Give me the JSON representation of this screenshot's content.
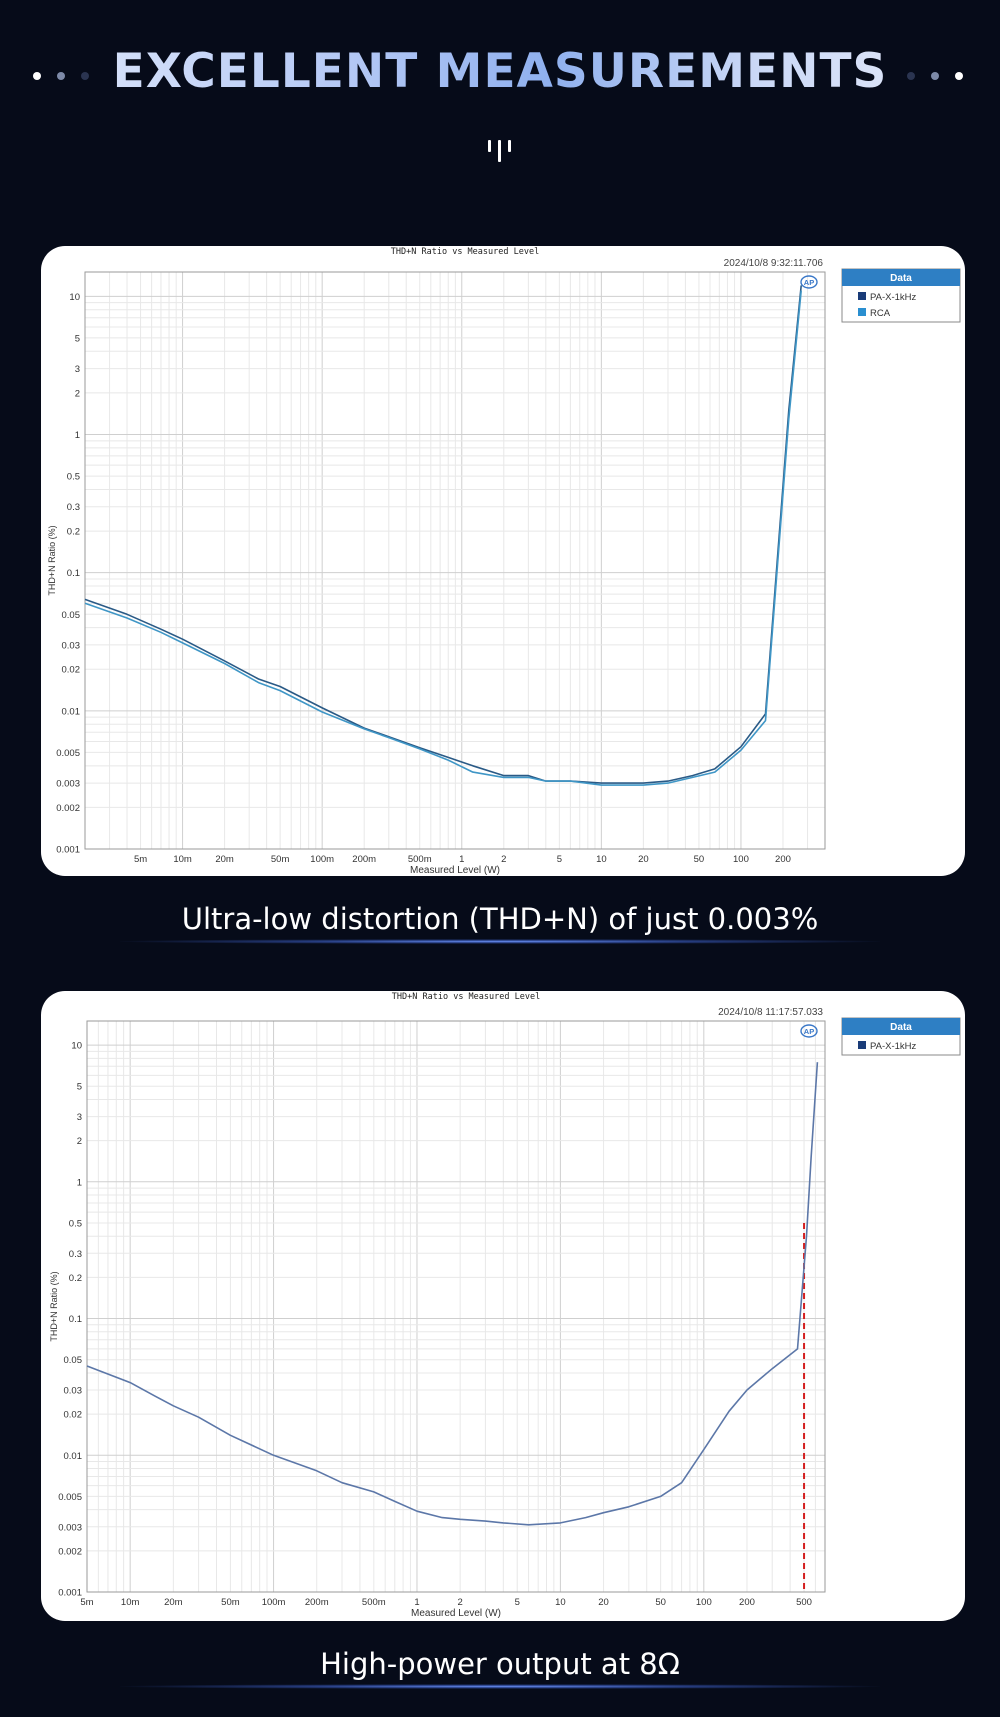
{
  "header": {
    "title": "EXCELLENT MEASUREMENTS",
    "colors": {
      "accent": "#8fb0ee",
      "background": "#060b19",
      "dot_light": "#ffffff",
      "dot_mid": "#7d8aa8",
      "dot_dark": "#2a3450"
    }
  },
  "captions": {
    "first": "Ultra-low distortion (THD+N) of just 0.003%",
    "second": "High-power output at 8Ω"
  },
  "chart_data": [
    {
      "type": "line",
      "title": "THD+N Ratio vs Measured Level",
      "timestamp": "2024/10/8 9:32:11.706",
      "xlabel": "Measured Level (W)",
      "ylabel": "THD+N Ratio (%)",
      "xscale": "log",
      "yscale": "log",
      "xlim": [
        0.002,
        400
      ],
      "ylim": [
        0.001,
        15
      ],
      "x_ticks": [
        {
          "v": 0.005,
          "label": "5m"
        },
        {
          "v": 0.01,
          "label": "10m"
        },
        {
          "v": 0.02,
          "label": "20m"
        },
        {
          "v": 0.05,
          "label": "50m"
        },
        {
          "v": 0.1,
          "label": "100m"
        },
        {
          "v": 0.2,
          "label": "200m"
        },
        {
          "v": 0.5,
          "label": "500m"
        },
        {
          "v": 1,
          "label": "1"
        },
        {
          "v": 2,
          "label": "2"
        },
        {
          "v": 5,
          "label": "5"
        },
        {
          "v": 10,
          "label": "10"
        },
        {
          "v": 20,
          "label": "20"
        },
        {
          "v": 50,
          "label": "50"
        },
        {
          "v": 100,
          "label": "100"
        },
        {
          "v": 200,
          "label": "200"
        }
      ],
      "y_ticks": [
        {
          "v": 10,
          "label": "10"
        },
        {
          "v": 5,
          "label": "5"
        },
        {
          "v": 3,
          "label": "3"
        },
        {
          "v": 2,
          "label": "2"
        },
        {
          "v": 1,
          "label": "1"
        },
        {
          "v": 0.5,
          "label": "0.5"
        },
        {
          "v": 0.3,
          "label": "0.3"
        },
        {
          "v": 0.2,
          "label": "0.2"
        },
        {
          "v": 0.1,
          "label": "0.1"
        },
        {
          "v": 0.05,
          "label": "0.05"
        },
        {
          "v": 0.03,
          "label": "0.03"
        },
        {
          "v": 0.02,
          "label": "0.02"
        },
        {
          "v": 0.01,
          "label": "0.01"
        },
        {
          "v": 0.005,
          "label": "0.005"
        },
        {
          "v": 0.003,
          "label": "0.003"
        },
        {
          "v": 0.002,
          "label": "0.002"
        },
        {
          "v": 0.001,
          "label": "0.001"
        }
      ],
      "legend": {
        "title": "Data",
        "placement": "right"
      },
      "ap_logo": "AP",
      "series": [
        {
          "name": "PA-X-1kHz",
          "color": "#2a5a86",
          "x": [
            0.002,
            0.004,
            0.007,
            0.01,
            0.02,
            0.035,
            0.05,
            0.1,
            0.2,
            0.3,
            0.5,
            0.8,
            1.2,
            2,
            3,
            4,
            6,
            10,
            15,
            20,
            30,
            45,
            65,
            100,
            150,
            220,
            270
          ],
          "y": [
            0.064,
            0.05,
            0.039,
            0.033,
            0.023,
            0.017,
            0.015,
            0.0105,
            0.0075,
            0.0065,
            0.0054,
            0.0046,
            0.004,
            0.0034,
            0.0034,
            0.0031,
            0.0031,
            0.003,
            0.003,
            0.003,
            0.0031,
            0.0034,
            0.0038,
            0.0055,
            0.0095,
            1.5,
            12
          ]
        },
        {
          "name": "RCA",
          "color": "#3f96c6",
          "x": [
            0.002,
            0.004,
            0.007,
            0.01,
            0.02,
            0.035,
            0.05,
            0.1,
            0.2,
            0.3,
            0.5,
            0.8,
            1.2,
            2,
            3,
            4,
            6,
            10,
            15,
            20,
            30,
            45,
            65,
            100,
            150,
            220,
            270
          ],
          "y": [
            0.06,
            0.047,
            0.037,
            0.031,
            0.022,
            0.016,
            0.014,
            0.0098,
            0.0074,
            0.0064,
            0.0053,
            0.0044,
            0.0036,
            0.0033,
            0.0033,
            0.0031,
            0.0031,
            0.0029,
            0.0029,
            0.0029,
            0.003,
            0.0033,
            0.0036,
            0.0052,
            0.0085,
            1.3,
            11
          ]
        }
      ]
    },
    {
      "type": "line",
      "title": "THD+N Ratio vs Measured Level",
      "timestamp": "2024/10/8 11:17:57.033",
      "xlabel": "Measured Level (W)",
      "ylabel": "THD+N Ratio (%)",
      "xscale": "log",
      "yscale": "log",
      "xlim": [
        0.005,
        700
      ],
      "ylim": [
        0.001,
        15
      ],
      "x_ticks": [
        {
          "v": 0.005,
          "label": "5m"
        },
        {
          "v": 0.01,
          "label": "10m"
        },
        {
          "v": 0.02,
          "label": "20m"
        },
        {
          "v": 0.05,
          "label": "50m"
        },
        {
          "v": 0.1,
          "label": "100m"
        },
        {
          "v": 0.2,
          "label": "200m"
        },
        {
          "v": 0.5,
          "label": "500m"
        },
        {
          "v": 1,
          "label": "1"
        },
        {
          "v": 2,
          "label": "2"
        },
        {
          "v": 5,
          "label": "5"
        },
        {
          "v": 10,
          "label": "10"
        },
        {
          "v": 20,
          "label": "20"
        },
        {
          "v": 50,
          "label": "50"
        },
        {
          "v": 100,
          "label": "100"
        },
        {
          "v": 200,
          "label": "200"
        },
        {
          "v": 500,
          "label": "500"
        }
      ],
      "y_ticks": [
        {
          "v": 10,
          "label": "10"
        },
        {
          "v": 5,
          "label": "5"
        },
        {
          "v": 3,
          "label": "3"
        },
        {
          "v": 2,
          "label": "2"
        },
        {
          "v": 1,
          "label": "1"
        },
        {
          "v": 0.5,
          "label": "0.5"
        },
        {
          "v": 0.3,
          "label": "0.3"
        },
        {
          "v": 0.2,
          "label": "0.2"
        },
        {
          "v": 0.1,
          "label": "0.1"
        },
        {
          "v": 0.05,
          "label": "0.05"
        },
        {
          "v": 0.03,
          "label": "0.03"
        },
        {
          "v": 0.02,
          "label": "0.02"
        },
        {
          "v": 0.01,
          "label": "0.01"
        },
        {
          "v": 0.005,
          "label": "0.005"
        },
        {
          "v": 0.003,
          "label": "0.003"
        },
        {
          "v": 0.002,
          "label": "0.002"
        },
        {
          "v": 0.001,
          "label": "0.001"
        }
      ],
      "legend": {
        "title": "Data",
        "placement": "right"
      },
      "ap_logo": "AP",
      "marker_line": {
        "x": 500,
        "y_top": 0.5,
        "color": "#d42020",
        "style": "dashed"
      },
      "series": [
        {
          "name": "PA-X-1kHz",
          "color": "#5c77a8",
          "x": [
            0.005,
            0.01,
            0.015,
            0.02,
            0.03,
            0.05,
            0.1,
            0.2,
            0.3,
            0.5,
            0.7,
            1,
            1.5,
            2,
            3,
            4,
            6,
            10,
            15,
            20,
            30,
            50,
            70,
            100,
            150,
            200,
            300,
            450,
            520,
            560,
            620
          ],
          "y": [
            0.045,
            0.034,
            0.027,
            0.023,
            0.019,
            0.014,
            0.01,
            0.0077,
            0.0063,
            0.0054,
            0.0046,
            0.0039,
            0.0035,
            0.0034,
            0.0033,
            0.0032,
            0.0031,
            0.0032,
            0.0035,
            0.0038,
            0.0042,
            0.005,
            0.0063,
            0.011,
            0.021,
            0.03,
            0.043,
            0.06,
            0.4,
            1.5,
            7.5
          ]
        }
      ]
    }
  ]
}
